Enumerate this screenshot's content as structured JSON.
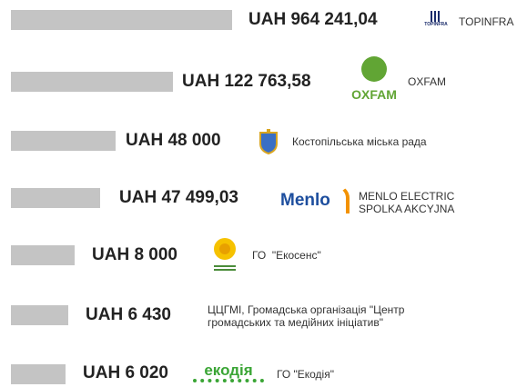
{
  "donors": [
    {
      "amount": "UAH 964 241,04",
      "logo": "TOPINFRA",
      "name": "TOPINFRA"
    },
    {
      "amount": "UAH 122 763,58",
      "logo": "OXFAM",
      "name": "OXFAM"
    },
    {
      "amount": "UAH 48 000",
      "name": "Костопільська міська рада"
    },
    {
      "amount": "UAH 47 499,03",
      "logo": "Menlo",
      "name": "MENLO ELECTRIC SPOLKA AKCYJNA"
    },
    {
      "amount": "UAH 8 000",
      "name": "ГО  \"Екосенс\""
    },
    {
      "amount": "UAH 6 430",
      "name": "ЦЦГМІ, Громадська організація \"Центр громадських та медійних ініціатив\""
    },
    {
      "amount": "UAH 6 020",
      "logo": "екодія",
      "name": "ГО \"Екодія\""
    }
  ]
}
